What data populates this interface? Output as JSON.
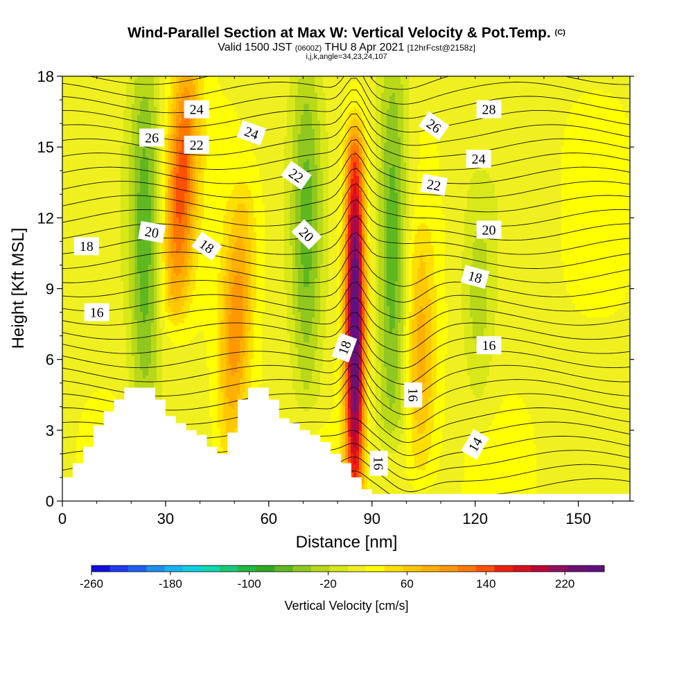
{
  "header": {
    "title_main": "Wind-Parallel Section at Max W: Vertical Velocity & Pot.Temp.",
    "title_mark": "(C)",
    "valid_a": "Valid 1500 JST",
    "valid_b": "(0600Z)",
    "valid_c": "THU 8 Apr 2021",
    "valid_d": "[12hrFcst@2158z]",
    "indices": "i,j,k,angle=34,23,24,107"
  },
  "chart_data": {
    "type": "heatmap",
    "xlabel": "Distance [nm]",
    "ylabel": "Height [Kft MSL]",
    "xlim": [
      0,
      165
    ],
    "ylim": [
      0,
      18
    ],
    "x_ticks": [
      "0",
      "30",
      "60",
      "90",
      "120",
      "150"
    ],
    "y_ticks": [
      "0",
      "3",
      "6",
      "9",
      "12",
      "15",
      "18"
    ],
    "colorbar": {
      "label": "Vertical Velocity [cm/s]",
      "range": [
        -260,
        260
      ],
      "tick_labels": [
        "-260",
        "-180",
        "-100",
        "-20",
        "60",
        "140",
        "220"
      ],
      "colors": [
        "#1010e0",
        "#1e3cf0",
        "#2060f0",
        "#1e90f0",
        "#18b4f0",
        "#10d0e0",
        "#10d8b0",
        "#18c878",
        "#20b840",
        "#30a820",
        "#60b820",
        "#90c820",
        "#b8d818",
        "#d8e818",
        "#f0f020",
        "#ffff00",
        "#ffe000",
        "#ffc800",
        "#ffb000",
        "#ff9800",
        "#ff7800",
        "#ff5000",
        "#f02010",
        "#d81020",
        "#b80838",
        "#901060",
        "#701070",
        "#601080"
      ]
    },
    "vertical_velocity_features": [
      {
        "kind": "updraft",
        "x": 33,
        "y_top": 18,
        "y_bottom": 9,
        "peak_cm_s": 120
      },
      {
        "kind": "downdraft",
        "x": 24,
        "y_top": 18,
        "y_bottom": 4,
        "peak_cm_s": -80
      },
      {
        "kind": "updraft",
        "x": 51,
        "y_top": 11.5,
        "y_bottom": 3,
        "peak_cm_s": 90
      },
      {
        "kind": "downdraft",
        "x": 71,
        "y_top": 18,
        "y_bottom": 5,
        "peak_cm_s": -70
      },
      {
        "kind": "updraft",
        "x": 85,
        "y_top": 14,
        "y_bottom": 1,
        "peak_cm_s": 250
      },
      {
        "kind": "downdraft",
        "x": 96,
        "y_top": 18,
        "y_bottom": 4,
        "peak_cm_s": -90
      },
      {
        "kind": "updraft",
        "x": 104,
        "y_top": 10,
        "y_bottom": 2,
        "peak_cm_s": 70
      },
      {
        "kind": "downdraft",
        "x": 121,
        "y_top": 12,
        "y_bottom": 5,
        "peak_cm_s": -40
      }
    ],
    "terrain_kft": {
      "x": [
        0,
        3,
        6,
        9,
        12,
        15,
        18,
        21,
        24,
        27,
        30,
        33,
        36,
        39,
        42,
        45,
        48,
        51,
        54,
        57,
        60,
        63,
        66,
        69,
        72,
        75,
        78,
        81,
        84,
        87,
        90
      ],
      "y": [
        1.0,
        1.6,
        2.3,
        3.2,
        3.8,
        4.3,
        4.8,
        4.8,
        4.8,
        4.3,
        3.6,
        3.3,
        3.0,
        2.8,
        2.3,
        2.0,
        2.9,
        4.3,
        4.8,
        4.8,
        4.3,
        3.5,
        3.3,
        3.0,
        2.8,
        2.5,
        2.0,
        1.6,
        1.0,
        0.5,
        0.0
      ]
    },
    "theta_contour_labels": [
      {
        "text": "26",
        "x": 26,
        "y": 15.4,
        "angle": 0
      },
      {
        "text": "24",
        "x": 39,
        "y": 16.6,
        "angle": 0
      },
      {
        "text": "22",
        "x": 39,
        "y": 15.1,
        "angle": 0
      },
      {
        "text": "24",
        "x": 55,
        "y": 15.6,
        "angle": 20
      },
      {
        "text": "22",
        "x": 68,
        "y": 13.8,
        "angle": 35
      },
      {
        "text": "20",
        "x": 26,
        "y": 11.4,
        "angle": 10
      },
      {
        "text": "18",
        "x": 42,
        "y": 10.8,
        "angle": 35
      },
      {
        "text": "20",
        "x": 71,
        "y": 11.3,
        "angle": 45
      },
      {
        "text": "18",
        "x": 7,
        "y": 10.8,
        "angle": 0
      },
      {
        "text": "16",
        "x": 10,
        "y": 8.0,
        "angle": 0
      },
      {
        "text": "18",
        "x": 82,
        "y": 6.5,
        "angle": -70
      },
      {
        "text": "26",
        "x": 108,
        "y": 15.9,
        "angle": 35
      },
      {
        "text": "28",
        "x": 124,
        "y": 16.6,
        "angle": 0
      },
      {
        "text": "24",
        "x": 121,
        "y": 14.5,
        "angle": 0
      },
      {
        "text": "22",
        "x": 108,
        "y": 13.4,
        "angle": 10
      },
      {
        "text": "20",
        "x": 124,
        "y": 11.5,
        "angle": 0
      },
      {
        "text": "18",
        "x": 120,
        "y": 9.5,
        "angle": 15
      },
      {
        "text": "16",
        "x": 124,
        "y": 6.6,
        "angle": 0
      },
      {
        "text": "16",
        "x": 102,
        "y": 4.5,
        "angle": 90
      },
      {
        "text": "16",
        "x": 92,
        "y": 1.6,
        "angle": 90
      },
      {
        "text": "14",
        "x": 120,
        "y": 2.4,
        "angle": -60
      }
    ]
  }
}
